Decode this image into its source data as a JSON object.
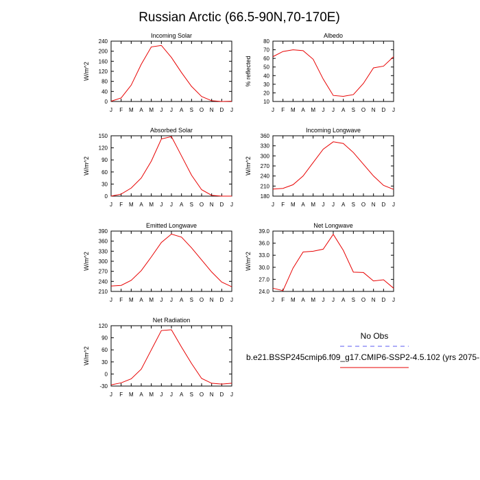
{
  "figure": {
    "title": "Russian Arctic (66.5-90N,70-170E)",
    "legend": {
      "obs_label": "No Obs",
      "model_label": "b.e21.BSSP245cmip6.f09_g17.CMIP6-SSP2-4.5.102 (yrs 2075-",
      "obs_color": "#5a5af0",
      "model_color": "#e80000"
    }
  },
  "chart_data": [
    {
      "type": "line",
      "title": "Incoming Solar",
      "ylabel": "W/m^2",
      "categories": [
        "J",
        "F",
        "M",
        "A",
        "M",
        "J",
        "J",
        "A",
        "S",
        "O",
        "N",
        "D",
        "J"
      ],
      "ylim": [
        0,
        240
      ],
      "yticks": [
        0,
        40,
        80,
        120,
        160,
        200,
        240
      ],
      "ytick_labels": [
        "0",
        "40",
        "80",
        "120",
        "160",
        "200",
        "240"
      ],
      "series": [
        {
          "values": [
            1,
            14,
            65,
            148,
            217,
            223,
            175,
            115,
            60,
            20,
            3,
            0,
            1
          ]
        }
      ]
    },
    {
      "type": "line",
      "title": "Albedo",
      "ylabel": "% reflected",
      "categories": [
        "J",
        "F",
        "M",
        "A",
        "M",
        "J",
        "J",
        "A",
        "S",
        "O",
        "N",
        "D",
        "J"
      ],
      "ylim": [
        10,
        80
      ],
      "yticks": [
        10,
        20,
        30,
        40,
        50,
        60,
        70,
        80
      ],
      "ytick_labels": [
        "10",
        "20",
        "30",
        "40",
        "50",
        "60",
        "70",
        "80"
      ],
      "series": [
        {
          "values": [
            62,
            68,
            70,
            69,
            59,
            36,
            17,
            16,
            18,
            31,
            49,
            51,
            62
          ]
        }
      ]
    },
    {
      "type": "line",
      "title": "Absorbed Solar",
      "ylabel": "W/m^2",
      "categories": [
        "J",
        "F",
        "M",
        "A",
        "M",
        "J",
        "J",
        "A",
        "S",
        "O",
        "N",
        "D",
        "J"
      ],
      "ylim": [
        0,
        150
      ],
      "yticks": [
        0,
        30,
        60,
        90,
        120,
        150
      ],
      "ytick_labels": [
        "0",
        "30",
        "60",
        "90",
        "120",
        "150"
      ],
      "series": [
        {
          "values": [
            0,
            5,
            20,
            45,
            87,
            142,
            148,
            100,
            52,
            16,
            2,
            0,
            0
          ]
        }
      ]
    },
    {
      "type": "line",
      "title": "Incoming Longwave",
      "ylabel": "W/m^2",
      "categories": [
        "J",
        "F",
        "M",
        "A",
        "M",
        "J",
        "J",
        "A",
        "S",
        "O",
        "N",
        "D",
        "J"
      ],
      "ylim": [
        180,
        360
      ],
      "yticks": [
        180,
        210,
        240,
        270,
        300,
        330,
        360
      ],
      "ytick_labels": [
        "180",
        "210",
        "240",
        "270",
        "300",
        "330",
        "360"
      ],
      "series": [
        {
          "values": [
            201,
            203,
            214,
            240,
            280,
            320,
            342,
            337,
            310,
            275,
            240,
            212,
            200
          ]
        }
      ]
    },
    {
      "type": "line",
      "title": "Emitted Longwave",
      "ylabel": "W/m^2",
      "categories": [
        "J",
        "F",
        "M",
        "A",
        "M",
        "J",
        "J",
        "A",
        "S",
        "O",
        "N",
        "D",
        "J"
      ],
      "ylim": [
        210,
        390
      ],
      "yticks": [
        210,
        240,
        270,
        300,
        330,
        360,
        390
      ],
      "ytick_labels": [
        "210",
        "240",
        "270",
        "300",
        "330",
        "360",
        "390"
      ],
      "series": [
        {
          "values": [
            226,
            228,
            243,
            272,
            313,
            356,
            381,
            372,
            340,
            304,
            268,
            238,
            224
          ]
        }
      ]
    },
    {
      "type": "line",
      "title": "Net Longwave",
      "ylabel": "W/m^2",
      "categories": [
        "J",
        "F",
        "M",
        "A",
        "M",
        "J",
        "J",
        "A",
        "S",
        "O",
        "N",
        "D",
        "J"
      ],
      "ylim": [
        24,
        39
      ],
      "yticks": [
        24,
        27,
        30,
        33,
        36,
        39
      ],
      "ytick_labels": [
        "24.0",
        "27.0",
        "30.0",
        "33.0",
        "36.0",
        "39.0"
      ],
      "series": [
        {
          "values": [
            24.8,
            24.2,
            29.8,
            33.8,
            34.0,
            34.5,
            38.2,
            34.2,
            28.8,
            28.7,
            26.6,
            26.9,
            24.8
          ]
        }
      ]
    },
    {
      "type": "line",
      "title": "Net Radiation",
      "ylabel": "W/m^2",
      "categories": [
        "J",
        "F",
        "M",
        "A",
        "M",
        "J",
        "J",
        "A",
        "S",
        "O",
        "N",
        "D",
        "J"
      ],
      "ylim": [
        -30,
        120
      ],
      "yticks": [
        -30,
        0,
        30,
        60,
        90,
        120
      ],
      "ytick_labels": [
        "-30",
        "0",
        "30",
        "60",
        "90",
        "120"
      ],
      "series": [
        {
          "values": [
            -27,
            -22,
            -12,
            12,
            60,
            108,
            110,
            67,
            26,
            -11,
            -23,
            -25,
            -23
          ]
        }
      ]
    }
  ]
}
